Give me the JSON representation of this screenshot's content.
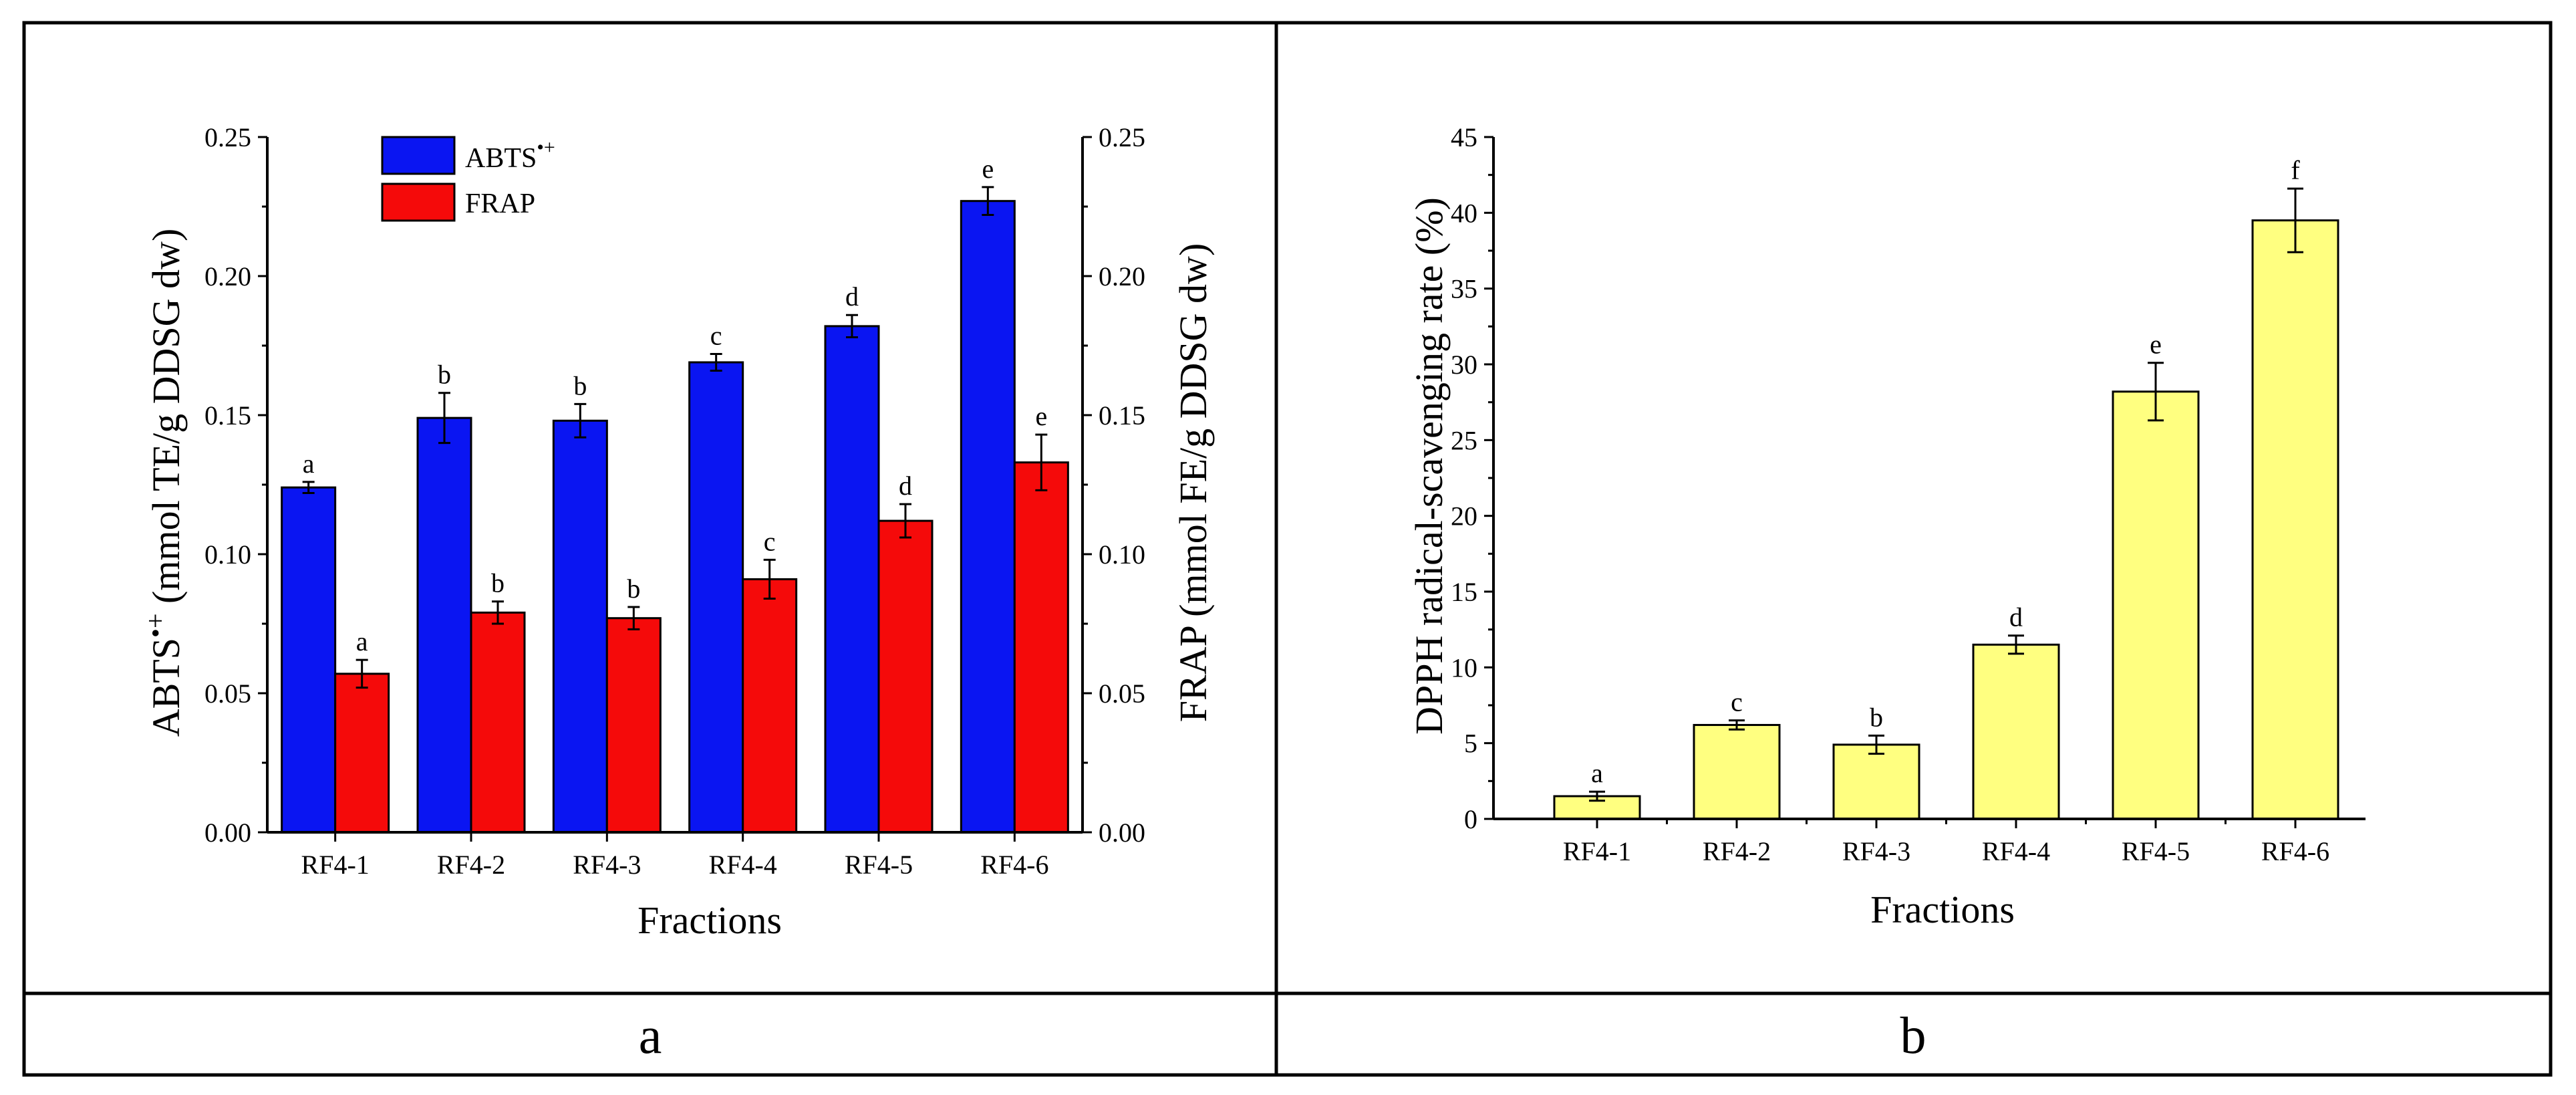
{
  "colors": {
    "abts": "#0a15f2",
    "frap": "#f50a0a",
    "dpph": "#ffff80",
    "border": "#000000"
  },
  "panels": {
    "a_label": "a",
    "b_label": "b"
  },
  "chart_data": [
    {
      "id": "a",
      "type": "bar",
      "xlabel": "Fractions",
      "ylabel_left": "ABTS•+ (mmol TE/g DDSG dw)",
      "ylabel_left_main": "ABTS",
      "ylabel_left_sup": "•+",
      "ylabel_left_rest": " (mmol TE/g DDSG dw)",
      "ylabel_right": "FRAP (mmol FE/g DDSG dw)",
      "ylim": [
        0,
        0.25
      ],
      "yticks": [
        "0.00",
        "0.05",
        "0.10",
        "0.15",
        "0.20",
        "0.25"
      ],
      "categories": [
        "RF4-1",
        "RF4-2",
        "RF4-3",
        "RF4-4",
        "RF4-5",
        "RF4-6"
      ],
      "legend_position": "top-left",
      "series": [
        {
          "name": "ABTS•+",
          "legend_main": "ABTS",
          "legend_sup": "•+",
          "values": [
            0.124,
            0.149,
            0.148,
            0.169,
            0.182,
            0.227
          ],
          "errors": [
            0.002,
            0.009,
            0.006,
            0.003,
            0.004,
            0.005
          ],
          "letters": [
            "a",
            "b",
            "b",
            "c",
            "d",
            "e"
          ]
        },
        {
          "name": "FRAP",
          "legend_main": "FRAP",
          "values": [
            0.057,
            0.079,
            0.077,
            0.091,
            0.112,
            0.133
          ],
          "errors": [
            0.005,
            0.004,
            0.004,
            0.007,
            0.006,
            0.01
          ],
          "letters": [
            "a",
            "b",
            "b",
            "c",
            "d",
            "e"
          ]
        }
      ]
    },
    {
      "id": "b",
      "type": "bar",
      "xlabel": "Fractions",
      "ylabel": "DPPH radical-scavenging rate (%)",
      "ylim": [
        0,
        45
      ],
      "yticks": [
        "0",
        "5",
        "10",
        "15",
        "20",
        "25",
        "30",
        "35",
        "40",
        "45"
      ],
      "categories": [
        "RF4-1",
        "RF4-2",
        "RF4-3",
        "RF4-4",
        "RF4-5",
        "RF4-6"
      ],
      "series": [
        {
          "name": "DPPH",
          "values": [
            1.5,
            6.2,
            4.9,
            11.5,
            28.2,
            39.5
          ],
          "errors": [
            0.3,
            0.3,
            0.6,
            0.6,
            1.9,
            2.1
          ],
          "letters": [
            "a",
            "c",
            "b",
            "d",
            "e",
            "f"
          ]
        }
      ]
    }
  ]
}
